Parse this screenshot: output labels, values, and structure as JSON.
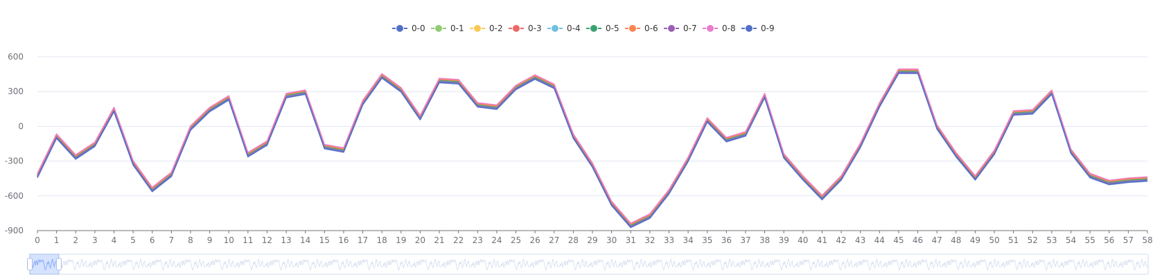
{
  "chart_data": {
    "type": "line",
    "title": "",
    "xlabel": "",
    "ylabel": "",
    "ylim": [
      -900,
      600
    ],
    "yticks": [
      600,
      300,
      0,
      -300,
      -600,
      -900
    ],
    "grid": true,
    "legend_position": "top-center",
    "categories": [
      "0",
      "1",
      "2",
      "3",
      "4",
      "5",
      "6",
      "7",
      "8",
      "9",
      "10",
      "11",
      "12",
      "13",
      "14",
      "15",
      "16",
      "17",
      "18",
      "19",
      "20",
      "21",
      "22",
      "23",
      "24",
      "25",
      "26",
      "27",
      "28",
      "29",
      "30",
      "31",
      "32",
      "33",
      "34",
      "35",
      "36",
      "37",
      "38",
      "39",
      "40",
      "41",
      "42",
      "43",
      "44",
      "45",
      "46",
      "47",
      "48",
      "49",
      "50",
      "51",
      "52",
      "53",
      "54",
      "55",
      "56",
      "57",
      "58"
    ],
    "base_values": [
      -440,
      -100,
      -280,
      -170,
      130,
      -330,
      -560,
      -430,
      -30,
      130,
      230,
      -260,
      -160,
      250,
      280,
      -190,
      -220,
      190,
      420,
      300,
      60,
      380,
      370,
      170,
      150,
      320,
      410,
      330,
      -100,
      -350,
      -680,
      -870,
      -790,
      -580,
      -300,
      40,
      -130,
      -80,
      250,
      -270,
      -460,
      -630,
      -460,
      -180,
      170,
      460,
      460,
      -20,
      -260,
      -460,
      -240,
      100,
      110,
      280,
      -230,
      -440,
      -500,
      -480,
      -470
    ],
    "series": [
      {
        "name": "0-0",
        "color": "#5470c6",
        "offset": -4
      },
      {
        "name": "0-1",
        "color": "#91cc75",
        "offset": 20
      },
      {
        "name": "0-2",
        "color": "#fac858",
        "offset": 12
      },
      {
        "name": "0-3",
        "color": "#ee6666",
        "offset": 30
      },
      {
        "name": "0-4",
        "color": "#73c0de",
        "offset": 8
      },
      {
        "name": "0-5",
        "color": "#3ba272",
        "offset": 16
      },
      {
        "name": "0-6",
        "color": "#fc8452",
        "offset": 24
      },
      {
        "name": "0-7",
        "color": "#9a60b4",
        "offset": 6
      },
      {
        "name": "0-8",
        "color": "#ea7ccc",
        "offset": 34
      },
      {
        "name": "0-9",
        "color": "#5470c6",
        "offset": 0
      }
    ]
  },
  "data_zoom": {
    "start_percent": 0,
    "end_percent": 2.6
  }
}
